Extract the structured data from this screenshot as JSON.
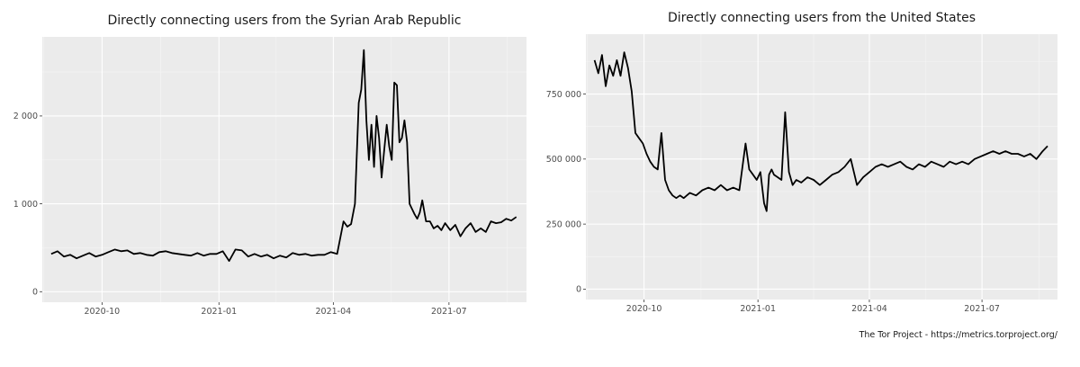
{
  "footer": "The Tor Project - https://metrics.torproject.org/",
  "chart_data": [
    {
      "type": "line",
      "title": "Directly connecting users from the Syrian Arab Republic",
      "xlabel": "",
      "ylabel": "",
      "x_range": [
        "2020-08-15",
        "2021-08-31"
      ],
      "x_ticks": [
        {
          "date": "2020-10-01",
          "label": "2020-10"
        },
        {
          "date": "2021-01-01",
          "label": "2021-01"
        },
        {
          "date": "2021-04-01",
          "label": "2021-04"
        },
        {
          "date": "2021-07-01",
          "label": "2021-07"
        }
      ],
      "ylim": [
        -120,
        2900
      ],
      "y_ticks": [
        {
          "value": 0,
          "label": "0"
        },
        {
          "value": 1000,
          "label": "1 000"
        },
        {
          "value": 2000,
          "label": "2 000"
        }
      ],
      "grid": true,
      "line_color": "#000000",
      "series": [
        {
          "x": [
            "2020-08-22",
            "2020-08-27",
            "2020-09-01",
            "2020-09-06",
            "2020-09-11",
            "2020-09-16",
            "2020-09-21",
            "2020-09-26",
            "2020-10-01",
            "2020-10-06",
            "2020-10-11",
            "2020-10-16",
            "2020-10-21",
            "2020-10-26",
            "2020-10-31",
            "2020-11-05",
            "2020-11-10",
            "2020-11-15",
            "2020-11-20",
            "2020-11-25",
            "2020-11-30",
            "2020-12-05",
            "2020-12-10",
            "2020-12-15",
            "2020-12-20",
            "2020-12-25",
            "2020-12-30",
            "2021-01-04",
            "2021-01-09",
            "2021-01-14",
            "2021-01-19",
            "2021-01-24",
            "2021-01-29",
            "2021-02-03",
            "2021-02-08",
            "2021-02-13",
            "2021-02-18",
            "2021-02-23",
            "2021-02-28",
            "2021-03-05",
            "2021-03-10",
            "2021-03-15",
            "2021-03-20",
            "2021-03-25",
            "2021-03-30",
            "2021-04-04",
            "2021-04-09",
            "2021-04-12",
            "2021-04-15",
            "2021-04-18",
            "2021-04-21",
            "2021-04-23",
            "2021-04-25",
            "2021-04-27",
            "2021-04-29",
            "2021-05-01",
            "2021-05-03",
            "2021-05-05",
            "2021-05-07",
            "2021-05-09",
            "2021-05-11",
            "2021-05-13",
            "2021-05-15",
            "2021-05-17",
            "2021-05-19",
            "2021-05-21",
            "2021-05-23",
            "2021-05-25",
            "2021-05-27",
            "2021-05-29",
            "2021-05-31",
            "2021-06-02",
            "2021-06-04",
            "2021-06-06",
            "2021-06-08",
            "2021-06-10",
            "2021-06-13",
            "2021-06-16",
            "2021-06-19",
            "2021-06-22",
            "2021-06-25",
            "2021-06-28",
            "2021-07-02",
            "2021-07-06",
            "2021-07-10",
            "2021-07-14",
            "2021-07-18",
            "2021-07-22",
            "2021-07-26",
            "2021-07-30",
            "2021-08-03",
            "2021-08-07",
            "2021-08-11",
            "2021-08-15",
            "2021-08-19",
            "2021-08-23"
          ],
          "y": [
            430,
            460,
            400,
            420,
            380,
            410,
            440,
            400,
            420,
            450,
            480,
            460,
            470,
            430,
            440,
            420,
            410,
            450,
            460,
            440,
            430,
            420,
            410,
            440,
            410,
            430,
            430,
            460,
            350,
            480,
            470,
            400,
            430,
            400,
            420,
            380,
            410,
            390,
            440,
            420,
            430,
            410,
            420,
            420,
            450,
            430,
            800,
            740,
            770,
            1000,
            2150,
            2300,
            2750,
            1950,
            1500,
            1900,
            1420,
            2000,
            1750,
            1300,
            1600,
            1900,
            1650,
            1500,
            2380,
            2350,
            1700,
            1750,
            1950,
            1700,
            1000,
            940,
            880,
            830,
            900,
            1040,
            800,
            800,
            720,
            750,
            700,
            780,
            700,
            760,
            630,
            720,
            780,
            680,
            720,
            680,
            800,
            780,
            790,
            830,
            810,
            850
          ]
        }
      ]
    },
    {
      "type": "line",
      "title": "Directly connecting users from the United States",
      "xlabel": "",
      "ylabel": "",
      "x_range": [
        "2020-08-15",
        "2021-08-31"
      ],
      "x_ticks": [
        {
          "date": "2020-10-01",
          "label": "2020-10"
        },
        {
          "date": "2021-01-01",
          "label": "2021-01"
        },
        {
          "date": "2021-04-01",
          "label": "2021-04"
        },
        {
          "date": "2021-07-01",
          "label": "2021-07"
        }
      ],
      "ylim": [
        -40000,
        980000
      ],
      "y_ticks": [
        {
          "value": 0,
          "label": "0"
        },
        {
          "value": 250000,
          "label": "250 000"
        },
        {
          "value": 500000,
          "label": "500 000"
        },
        {
          "value": 750000,
          "label": "750 000"
        }
      ],
      "grid": true,
      "line_color": "#000000",
      "series": [
        {
          "x": [
            "2020-08-22",
            "2020-08-25",
            "2020-08-28",
            "2020-08-31",
            "2020-09-03",
            "2020-09-06",
            "2020-09-09",
            "2020-09-12",
            "2020-09-15",
            "2020-09-18",
            "2020-09-21",
            "2020-09-24",
            "2020-09-27",
            "2020-09-30",
            "2020-10-03",
            "2020-10-06",
            "2020-10-09",
            "2020-10-12",
            "2020-10-15",
            "2020-10-18",
            "2020-10-21",
            "2020-10-24",
            "2020-10-27",
            "2020-10-30",
            "2020-11-02",
            "2020-11-07",
            "2020-11-12",
            "2020-11-17",
            "2020-11-22",
            "2020-11-27",
            "2020-12-02",
            "2020-12-07",
            "2020-12-12",
            "2020-12-17",
            "2020-12-22",
            "2020-12-25",
            "2020-12-28",
            "2020-12-31",
            "2021-01-03",
            "2021-01-06",
            "2021-01-08",
            "2021-01-10",
            "2021-01-12",
            "2021-01-14",
            "2021-01-17",
            "2021-01-20",
            "2021-01-23",
            "2021-01-26",
            "2021-01-29",
            "2021-02-01",
            "2021-02-05",
            "2021-02-10",
            "2021-02-15",
            "2021-02-20",
            "2021-02-25",
            "2021-03-02",
            "2021-03-07",
            "2021-03-12",
            "2021-03-17",
            "2021-03-22",
            "2021-03-27",
            "2021-04-01",
            "2021-04-06",
            "2021-04-11",
            "2021-04-16",
            "2021-04-21",
            "2021-04-26",
            "2021-05-01",
            "2021-05-06",
            "2021-05-11",
            "2021-05-16",
            "2021-05-21",
            "2021-05-26",
            "2021-05-31",
            "2021-06-05",
            "2021-06-10",
            "2021-06-15",
            "2021-06-20",
            "2021-06-25",
            "2021-06-30",
            "2021-07-05",
            "2021-07-10",
            "2021-07-15",
            "2021-07-20",
            "2021-07-25",
            "2021-07-30",
            "2021-08-04",
            "2021-08-09",
            "2021-08-14",
            "2021-08-19",
            "2021-08-23"
          ],
          "y": [
            880,
            830,
            900,
            780,
            860,
            820,
            880,
            820,
            910,
            850,
            760,
            600,
            580,
            560,
            520,
            490,
            470,
            460,
            600,
            420,
            380,
            360,
            350,
            360,
            350,
            370,
            360,
            380,
            390,
            380,
            400,
            380,
            390,
            380,
            560,
            460,
            440,
            420,
            450,
            330,
            300,
            440,
            460,
            440,
            430,
            420,
            680,
            450,
            400,
            420,
            410,
            430,
            420,
            400,
            420,
            440,
            450,
            470,
            500,
            400,
            430,
            450,
            470,
            480,
            470,
            480,
            490,
            470,
            460,
            480,
            470,
            490,
            480,
            470,
            490,
            480,
            490,
            480,
            500,
            510,
            520,
            530,
            520,
            530,
            520,
            520,
            510,
            520,
            500,
            530,
            550
          ]
        }
      ],
      "y_unit_multiplier": 1000
    }
  ]
}
